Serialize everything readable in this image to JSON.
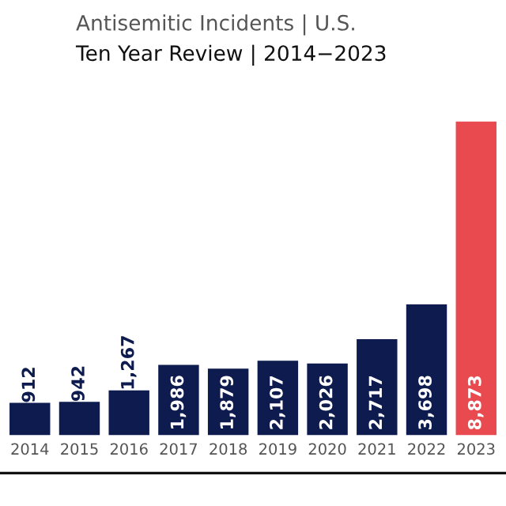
{
  "chart_data": {
    "type": "bar",
    "title": "Antisemitic Incidents | U.S.",
    "subtitle": "Ten Year Review | 2014−2023",
    "categories": [
      "2014",
      "2015",
      "2016",
      "2017",
      "2018",
      "2019",
      "2020",
      "2021",
      "2022",
      "2023"
    ],
    "values": [
      912,
      942,
      1267,
      1986,
      1879,
      2107,
      2026,
      2717,
      3698,
      8873
    ],
    "colors": [
      "#0d1b4f",
      "#0d1b4f",
      "#0d1b4f",
      "#0d1b4f",
      "#0d1b4f",
      "#0d1b4f",
      "#0d1b4f",
      "#0d1b4f",
      "#0d1b4f",
      "#e84a4f"
    ],
    "value_labels": [
      "912",
      "942",
      "1,267",
      "1,986",
      "1,879",
      "2,107",
      "2,026",
      "2,717",
      "3,698",
      "8,873"
    ],
    "ylim": [
      0,
      8873
    ],
    "grid": false,
    "legend": false
  }
}
